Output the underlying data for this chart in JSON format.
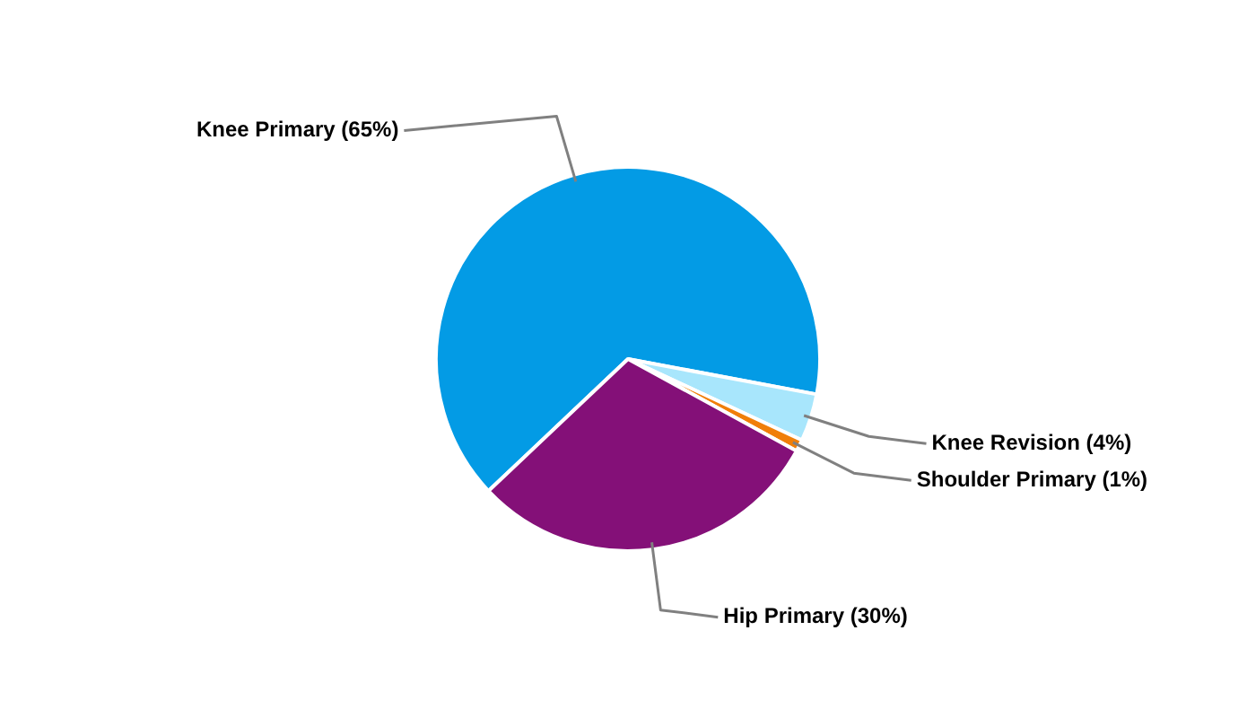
{
  "chart_data": {
    "type": "pie",
    "categories": [
      "Knee Primary (65%)",
      "Knee Revision (4%)",
      "Shoulder Primary (1%)",
      "Hip Primary (30%)"
    ],
    "values": [
      65,
      4,
      1,
      30
    ],
    "colors": [
      "#039be5",
      "#a8e6fc",
      "#f07f09",
      "#841078"
    ],
    "legend": false
  }
}
